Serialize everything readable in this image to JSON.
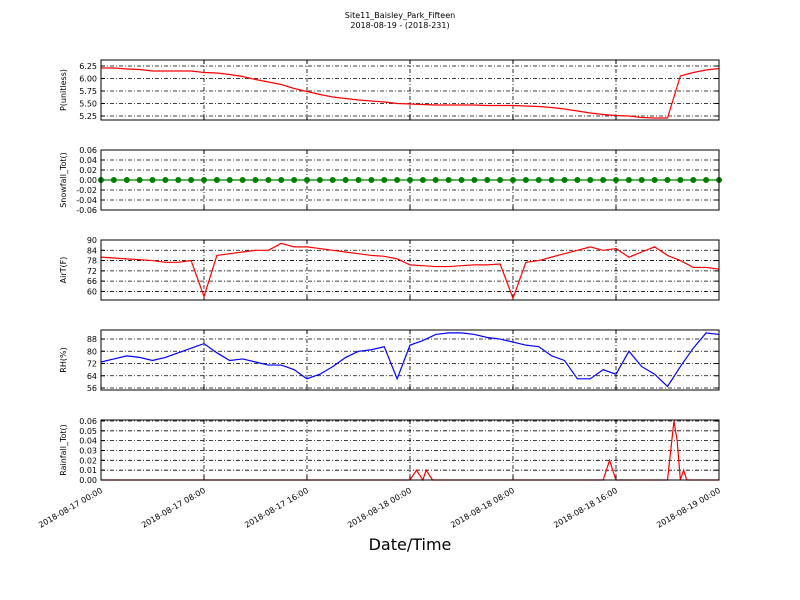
{
  "figure": {
    "title": "Site11_Baisley_Park_Fifteen",
    "subtitle": "2018-08-19 - (2018-231)",
    "xlabel": "Date/Time",
    "xlim": [
      "2018-08-17 00:00",
      "2018-08-19 00:00"
    ],
    "xticks": [
      "2018-08-17 00:00",
      "2018-08-17 08:00",
      "2018-08-17 16:00",
      "2018-08-18 00:00",
      "2018-08-18 08:00",
      "2018-08-18 16:00",
      "2018-08-19 00:00"
    ]
  },
  "chart_data": [
    {
      "type": "line",
      "ylabel": "P(unitless)",
      "color": "#ff0000",
      "grid": true,
      "ylim": [
        5.17,
        6.37
      ],
      "yticks": [
        5.25,
        {
          "value": 5.5,
          "label": "5.50"
        },
        5.75,
        {
          "value": 6.0,
          "label": "6.00"
        },
        6.25
      ],
      "x": [
        "2018-08-17 00:00",
        "2018-08-17 01:00",
        "2018-08-17 02:00",
        "2018-08-17 03:00",
        "2018-08-17 04:00",
        "2018-08-17 05:00",
        "2018-08-17 06:00",
        "2018-08-17 07:00",
        "2018-08-17 08:00",
        "2018-08-17 09:00",
        "2018-08-17 10:00",
        "2018-08-17 11:00",
        "2018-08-17 12:00",
        "2018-08-17 13:00",
        "2018-08-17 14:00",
        "2018-08-17 15:00",
        "2018-08-17 16:00",
        "2018-08-17 17:00",
        "2018-08-17 18:00",
        "2018-08-17 19:00",
        "2018-08-17 20:00",
        "2018-08-17 21:00",
        "2018-08-17 22:00",
        "2018-08-17 23:00",
        "2018-08-18 00:00",
        "2018-08-18 01:00",
        "2018-08-18 02:00",
        "2018-08-18 03:00",
        "2018-08-18 04:00",
        "2018-08-18 05:00",
        "2018-08-18 06:00",
        "2018-08-18 07:00",
        "2018-08-18 08:00",
        "2018-08-18 09:00",
        "2018-08-18 10:00",
        "2018-08-18 11:00",
        "2018-08-18 12:00",
        "2018-08-18 13:00",
        "2018-08-18 14:00",
        "2018-08-18 15:00",
        "2018-08-18 16:00",
        "2018-08-18 17:00",
        "2018-08-18 18:00",
        "2018-08-18 19:00",
        "2018-08-18 20:00",
        "2018-08-18 21:00",
        "2018-08-18 22:00",
        "2018-08-18 23:00",
        "2018-08-19 00:00"
      ],
      "values": [
        6.21,
        6.21,
        6.19,
        6.18,
        6.15,
        6.15,
        6.15,
        6.15,
        6.12,
        6.11,
        6.08,
        6.04,
        5.98,
        5.93,
        5.88,
        5.8,
        5.74,
        5.68,
        5.63,
        5.6,
        5.57,
        5.55,
        5.53,
        5.5,
        5.49,
        5.48,
        5.47,
        5.47,
        5.47,
        5.47,
        5.46,
        5.46,
        5.46,
        5.45,
        5.44,
        5.42,
        5.39,
        5.35,
        5.31,
        5.28,
        5.26,
        5.25,
        5.22,
        5.21,
        5.21,
        6.05,
        6.12,
        6.17,
        6.2
      ]
    },
    {
      "type": "line",
      "ylabel": "Snowfall_Tot()",
      "color": "#008000",
      "marker": true,
      "grid": true,
      "ylim": [
        -0.06,
        0.06
      ],
      "yticks": [
        -0.06,
        -0.04,
        -0.02,
        {
          "value": 0,
          "label": "0.00"
        },
        0.02,
        0.04,
        0.06
      ],
      "x": [
        "2018-08-17 00:00",
        "2018-08-17 01:00",
        "2018-08-17 02:00",
        "2018-08-17 03:00",
        "2018-08-17 04:00",
        "2018-08-17 05:00",
        "2018-08-17 06:00",
        "2018-08-17 07:00",
        "2018-08-17 08:00",
        "2018-08-17 09:00",
        "2018-08-17 10:00",
        "2018-08-17 11:00",
        "2018-08-17 12:00",
        "2018-08-17 13:00",
        "2018-08-17 14:00",
        "2018-08-17 15:00",
        "2018-08-17 16:00",
        "2018-08-17 17:00",
        "2018-08-17 18:00",
        "2018-08-17 19:00",
        "2018-08-17 20:00",
        "2018-08-17 21:00",
        "2018-08-17 22:00",
        "2018-08-17 23:00",
        "2018-08-18 00:00",
        "2018-08-18 01:00",
        "2018-08-18 02:00",
        "2018-08-18 03:00",
        "2018-08-18 04:00",
        "2018-08-18 05:00",
        "2018-08-18 06:00",
        "2018-08-18 07:00",
        "2018-08-18 08:00",
        "2018-08-18 09:00",
        "2018-08-18 10:00",
        "2018-08-18 11:00",
        "2018-08-18 12:00",
        "2018-08-18 13:00",
        "2018-08-18 14:00",
        "2018-08-18 15:00",
        "2018-08-18 16:00",
        "2018-08-18 17:00",
        "2018-08-18 18:00",
        "2018-08-18 19:00",
        "2018-08-18 20:00",
        "2018-08-18 21:00",
        "2018-08-18 22:00",
        "2018-08-18 23:00",
        "2018-08-19 00:00"
      ],
      "values": [
        0,
        0,
        0,
        0,
        0,
        0,
        0,
        0,
        0,
        0,
        0,
        0,
        0,
        0,
        0,
        0,
        0,
        0,
        0,
        0,
        0,
        0,
        0,
        0,
        0,
        0,
        0,
        0,
        0,
        0,
        0,
        0,
        0,
        0,
        0,
        0,
        0,
        0,
        0,
        0,
        0,
        0,
        0,
        0,
        0,
        0,
        0,
        0,
        0
      ]
    },
    {
      "type": "line",
      "ylabel": "AirT(F)",
      "color": "#ff0000",
      "grid": true,
      "ylim": [
        55,
        90
      ],
      "yticks": [
        60,
        66,
        72,
        78,
        84,
        90
      ],
      "x": [
        "2018-08-17 00:00",
        "2018-08-17 01:00",
        "2018-08-17 02:00",
        "2018-08-17 03:00",
        "2018-08-17 04:00",
        "2018-08-17 05:00",
        "2018-08-17 06:00",
        "2018-08-17 07:00",
        "2018-08-17 08:00",
        "2018-08-17 09:00",
        "2018-08-17 10:00",
        "2018-08-17 11:00",
        "2018-08-17 12:00",
        "2018-08-17 13:00",
        "2018-08-17 14:00",
        "2018-08-17 15:00",
        "2018-08-17 16:00",
        "2018-08-17 17:00",
        "2018-08-17 18:00",
        "2018-08-17 19:00",
        "2018-08-17 20:00",
        "2018-08-17 21:00",
        "2018-08-17 22:00",
        "2018-08-17 23:00",
        "2018-08-18 00:00",
        "2018-08-18 01:00",
        "2018-08-18 02:00",
        "2018-08-18 03:00",
        "2018-08-18 04:00",
        "2018-08-18 05:00",
        "2018-08-18 06:00",
        "2018-08-18 07:00",
        "2018-08-18 08:00",
        "2018-08-18 09:00",
        "2018-08-18 10:00",
        "2018-08-18 11:00",
        "2018-08-18 12:00",
        "2018-08-18 13:00",
        "2018-08-18 14:00",
        "2018-08-18 15:00",
        "2018-08-18 16:00",
        "2018-08-18 17:00",
        "2018-08-18 18:00",
        "2018-08-18 19:00",
        "2018-08-18 20:00",
        "2018-08-18 21:00",
        "2018-08-18 22:00",
        "2018-08-18 23:00",
        "2018-08-19 00:00"
      ],
      "values": [
        80,
        79.5,
        79,
        78.5,
        78,
        77,
        77,
        78,
        57,
        81,
        82,
        83,
        84,
        84,
        88,
        86,
        86,
        85,
        84,
        83,
        82,
        81,
        80.5,
        79,
        75.5,
        75,
        74.5,
        74.5,
        75,
        75.5,
        75.5,
        76,
        56,
        77,
        78,
        80,
        82,
        84,
        86,
        84,
        85,
        80,
        83,
        86,
        81,
        78,
        74,
        74,
        73
      ]
    },
    {
      "type": "line",
      "ylabel": "RH(%)",
      "color": "#0000ff",
      "grid": true,
      "ylim": [
        54.7,
        93.9
      ],
      "yticks": [
        56,
        64,
        72,
        80,
        88
      ],
      "x": [
        "2018-08-17 00:00",
        "2018-08-17 01:00",
        "2018-08-17 02:00",
        "2018-08-17 03:00",
        "2018-08-17 04:00",
        "2018-08-17 05:00",
        "2018-08-17 06:00",
        "2018-08-17 07:00",
        "2018-08-17 08:00",
        "2018-08-17 09:00",
        "2018-08-17 10:00",
        "2018-08-17 11:00",
        "2018-08-17 12:00",
        "2018-08-17 13:00",
        "2018-08-17 14:00",
        "2018-08-17 15:00",
        "2018-08-17 16:00",
        "2018-08-17 17:00",
        "2018-08-17 18:00",
        "2018-08-17 19:00",
        "2018-08-17 20:00",
        "2018-08-17 21:00",
        "2018-08-17 22:00",
        "2018-08-17 23:00",
        "2018-08-18 00:00",
        "2018-08-18 01:00",
        "2018-08-18 02:00",
        "2018-08-18 03:00",
        "2018-08-18 04:00",
        "2018-08-18 05:00",
        "2018-08-18 06:00",
        "2018-08-18 07:00",
        "2018-08-18 08:00",
        "2018-08-18 09:00",
        "2018-08-18 10:00",
        "2018-08-18 11:00",
        "2018-08-18 12:00",
        "2018-08-18 13:00",
        "2018-08-18 14:00",
        "2018-08-18 15:00",
        "2018-08-18 16:00",
        "2018-08-18 17:00",
        "2018-08-18 18:00",
        "2018-08-18 19:00",
        "2018-08-18 20:00",
        "2018-08-18 21:00",
        "2018-08-18 22:00",
        "2018-08-18 23:00",
        "2018-08-19 00:00"
      ],
      "values": [
        73,
        75,
        77,
        76,
        74,
        76,
        79,
        82,
        85,
        79,
        74,
        75,
        73,
        71,
        71,
        68,
        62,
        65,
        70,
        76,
        80,
        81,
        83,
        62,
        84,
        87,
        91,
        92,
        92,
        91,
        89,
        88,
        86,
        84,
        83,
        77,
        74,
        62,
        62,
        68,
        65,
        80,
        70,
        65,
        57,
        70,
        82,
        92,
        91
      ]
    },
    {
      "type": "line",
      "ylabel": "Rainfall_Tot()",
      "color": "#ff0000",
      "grid": true,
      "ylim": [
        0,
        0.061
      ],
      "yticks": [
        {
          "value": 0,
          "label": "0.00"
        },
        0.01,
        0.02,
        0.03,
        0.04,
        0.05,
        0.06
      ],
      "x": [
        "2018-08-17 00:00",
        "2018-08-18 00:00",
        "2018-08-18 00:30",
        "2018-08-18 01:00",
        "2018-08-18 01:15",
        "2018-08-18 01:45",
        "2018-08-18 15:00",
        "2018-08-18 15:30",
        "2018-08-18 16:00",
        "2018-08-18 20:00",
        "2018-08-18 20:30",
        "2018-08-18 20:45",
        "2018-08-18 21:00",
        "2018-08-18 21:15",
        "2018-08-18 21:30",
        "2018-08-19 00:00"
      ],
      "values": [
        0,
        0,
        0.01,
        0,
        0.01,
        0,
        0,
        0.02,
        0,
        0,
        0.06,
        0.04,
        0,
        0.01,
        0,
        0
      ]
    }
  ]
}
